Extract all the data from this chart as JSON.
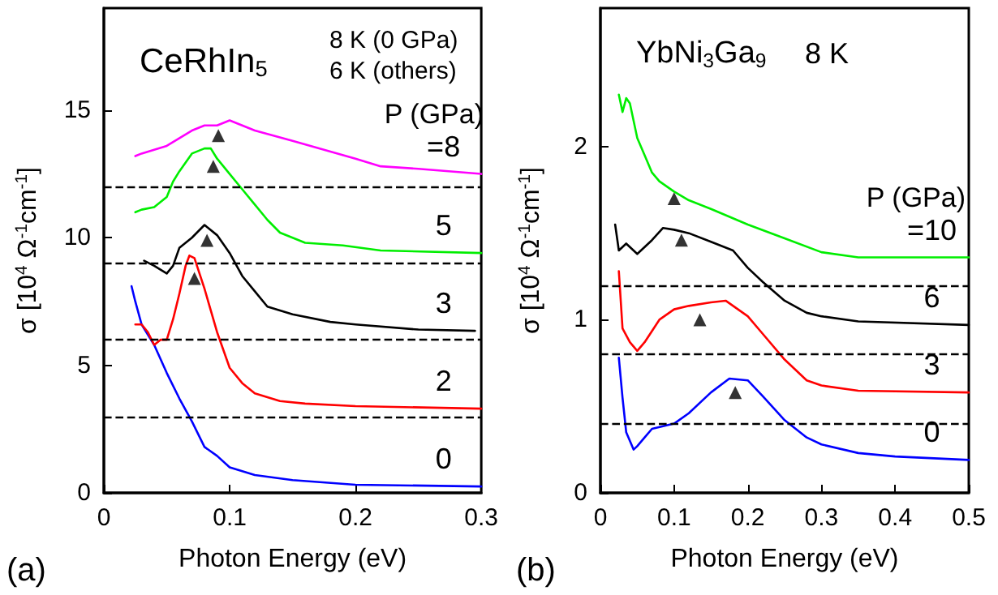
{
  "chart_data": [
    {
      "type": "line",
      "xlabel": "Photon Energy (eV)",
      "ylabel": "σ [10$^{4}$ Ω$^{-1}$cm$^{-1}$]",
      "legend_title": "P (GPa)",
      "annotations": [
        "CeRhIn$_{5}$",
        "8 K (0 GPa)",
        "6 K (others)",
        "(a)"
      ],
      "xlim": [
        0,
        0.3
      ],
      "xticks": [
        0,
        0.1,
        0.2,
        0.3
      ],
      "ylim": [
        0,
        19
      ],
      "yticks": [
        0,
        5,
        10,
        15
      ],
      "grid": false,
      "marker": "none",
      "line_style": "solid",
      "ref_lines": [
        {
          "axis": "y",
          "value": 3,
          "color": "#000000",
          "line_style": "dashed"
        },
        {
          "axis": "y",
          "value": 6,
          "color": "#000000",
          "line_style": "dashed"
        },
        {
          "axis": "y",
          "value": 9,
          "color": "#000000",
          "line_style": "dashed"
        },
        {
          "axis": "y",
          "value": 12,
          "color": "#000000",
          "line_style": "dashed"
        }
      ],
      "series": [
        {
          "name": "0",
          "color": "#0000ff",
          "x": [
            0.022,
            0.025,
            0.03,
            0.04,
            0.05,
            0.06,
            0.07,
            0.08,
            0.09,
            0.1,
            0.12,
            0.15,
            0.2,
            0.3
          ],
          "values": [
            8.1,
            7.5,
            6.6,
            5.8,
            4.7,
            3.7,
            2.8,
            1.8,
            1.45,
            1.0,
            0.7,
            0.5,
            0.32,
            0.25
          ]
        },
        {
          "name": "2",
          "color": "#ff0000",
          "x": [
            0.025,
            0.03,
            0.035,
            0.04,
            0.045,
            0.05,
            0.055,
            0.06,
            0.065,
            0.068,
            0.072,
            0.08,
            0.09,
            0.1,
            0.11,
            0.12,
            0.14,
            0.16,
            0.2,
            0.3
          ],
          "values": [
            6.6,
            6.6,
            6.3,
            5.8,
            6.0,
            6.0,
            6.8,
            7.8,
            8.9,
            9.3,
            9.2,
            8.0,
            6.3,
            4.9,
            4.3,
            3.9,
            3.6,
            3.5,
            3.4,
            3.3
          ]
        },
        {
          "name": "3",
          "color": "#000000",
          "x": [
            0.032,
            0.04,
            0.05,
            0.055,
            0.06,
            0.07,
            0.08,
            0.09,
            0.1,
            0.11,
            0.12,
            0.13,
            0.15,
            0.18,
            0.2,
            0.25,
            0.295
          ],
          "values": [
            9.1,
            8.9,
            8.6,
            8.9,
            9.6,
            10.0,
            10.5,
            10.1,
            9.4,
            8.5,
            7.9,
            7.3,
            7.0,
            6.7,
            6.6,
            6.4,
            6.35
          ]
        },
        {
          "name": "5",
          "color": "#00ee00",
          "x": [
            0.025,
            0.03,
            0.04,
            0.05,
            0.055,
            0.06,
            0.07,
            0.08,
            0.085,
            0.09,
            0.1,
            0.11,
            0.12,
            0.13,
            0.14,
            0.16,
            0.19,
            0.22,
            0.3
          ],
          "values": [
            11.0,
            11.1,
            11.2,
            11.6,
            12.2,
            12.6,
            13.3,
            13.5,
            13.5,
            13.1,
            12.5,
            11.9,
            11.3,
            10.7,
            10.2,
            9.8,
            9.7,
            9.5,
            9.4
          ]
        },
        {
          "name": "=8",
          "color": "#ff00ff",
          "x": [
            0.025,
            0.03,
            0.05,
            0.07,
            0.08,
            0.09,
            0.1,
            0.12,
            0.15,
            0.2,
            0.22,
            0.25,
            0.3
          ],
          "values": [
            13.2,
            13.3,
            13.6,
            14.2,
            14.4,
            14.4,
            14.6,
            14.2,
            13.8,
            13.1,
            12.8,
            12.7,
            12.5
          ]
        },
        {
          "type": "scatter",
          "marker": "triangle",
          "color": "#000000",
          "x": [
            0.072,
            0.082,
            0.087,
            0.091
          ],
          "values": [
            8.4,
            9.9,
            12.8,
            14.0
          ]
        }
      ]
    },
    {
      "type": "line",
      "xlabel": "Photon Energy (eV)",
      "ylabel": "σ [10$^{4}$ Ω$^{-1}$cm$^{-1}$]",
      "legend_title": "P (GPa)",
      "annotations": [
        "YbNi$_{3}$Ga$_{9}$",
        "8 K",
        "(b)"
      ],
      "xlim": [
        0,
        0.5
      ],
      "xticks": [
        0,
        0.1,
        0.2,
        0.3,
        0.4,
        0.5
      ],
      "ylim": [
        0,
        2.8
      ],
      "yticks": [
        0,
        1,
        2
      ],
      "grid": false,
      "marker": "none",
      "line_style": "solid",
      "ref_lines": [
        {
          "axis": "y",
          "value": 0.4,
          "color": "#000000",
          "line_style": "dashed"
        },
        {
          "axis": "y",
          "value": 0.8,
          "color": "#000000",
          "line_style": "dashed"
        },
        {
          "axis": "y",
          "value": 1.2,
          "color": "#000000",
          "line_style": "dashed"
        }
      ],
      "series": [
        {
          "name": "0",
          "color": "#0000ff",
          "x": [
            0.025,
            0.03,
            0.035,
            0.045,
            0.05,
            0.06,
            0.07,
            0.1,
            0.12,
            0.15,
            0.175,
            0.2,
            0.22,
            0.25,
            0.28,
            0.3,
            0.35,
            0.4,
            0.5
          ],
          "values": [
            0.78,
            0.55,
            0.35,
            0.25,
            0.27,
            0.32,
            0.37,
            0.4,
            0.46,
            0.58,
            0.66,
            0.65,
            0.56,
            0.42,
            0.32,
            0.28,
            0.23,
            0.21,
            0.19
          ]
        },
        {
          "name": "3",
          "color": "#ff0000",
          "x": [
            0.025,
            0.03,
            0.04,
            0.05,
            0.06,
            0.08,
            0.1,
            0.12,
            0.15,
            0.17,
            0.2,
            0.22,
            0.25,
            0.28,
            0.3,
            0.35,
            0.5
          ],
          "values": [
            1.28,
            0.95,
            0.87,
            0.82,
            0.87,
            1.0,
            1.06,
            1.08,
            1.1,
            1.11,
            1.02,
            0.92,
            0.77,
            0.65,
            0.62,
            0.59,
            0.58
          ]
        },
        {
          "name": "6",
          "color": "#000000",
          "x": [
            0.02,
            0.025,
            0.035,
            0.05,
            0.07,
            0.085,
            0.1,
            0.12,
            0.15,
            0.18,
            0.2,
            0.22,
            0.25,
            0.28,
            0.3,
            0.35,
            0.5
          ],
          "values": [
            1.55,
            1.4,
            1.44,
            1.38,
            1.46,
            1.53,
            1.52,
            1.5,
            1.45,
            1.4,
            1.3,
            1.22,
            1.11,
            1.04,
            1.02,
            0.99,
            0.97
          ]
        },
        {
          "name": "=10",
          "color": "#00ee00",
          "x": [
            0.025,
            0.03,
            0.035,
            0.04,
            0.05,
            0.06,
            0.07,
            0.08,
            0.1,
            0.12,
            0.15,
            0.2,
            0.25,
            0.3,
            0.35,
            0.5
          ],
          "values": [
            2.3,
            2.2,
            2.28,
            2.25,
            2.05,
            1.95,
            1.85,
            1.8,
            1.74,
            1.69,
            1.64,
            1.55,
            1.47,
            1.39,
            1.36,
            1.36
          ]
        },
        {
          "type": "scatter",
          "marker": "triangle",
          "color": "#000000",
          "x": [
            0.1,
            0.11,
            0.135,
            0.183
          ],
          "values": [
            1.7,
            1.46,
            1.0,
            0.58
          ]
        }
      ]
    }
  ]
}
